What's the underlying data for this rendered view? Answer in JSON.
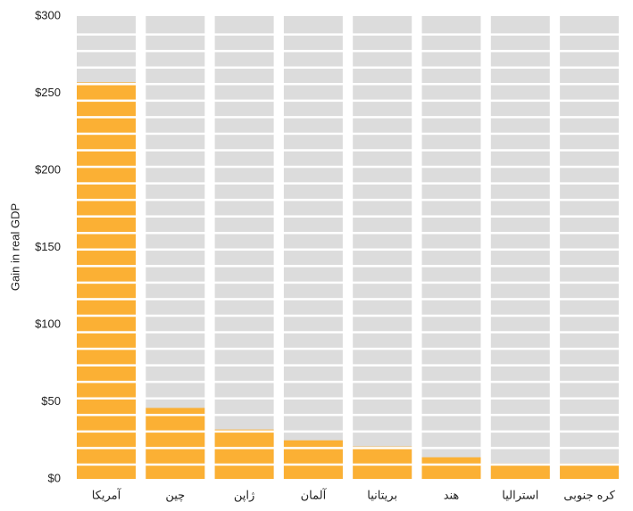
{
  "chart_data": {
    "type": "bar",
    "y_label": "Gain in real GDP",
    "categories": [
      "آمریکا",
      "چین",
      "ژاپن",
      "آلمان",
      "بریتانیا",
      "هند",
      "استرالیا",
      "کره جنوبی"
    ],
    "values": [
      257,
      46,
      32,
      25,
      21,
      14,
      10,
      10
    ],
    "color": "#fbb034",
    "ylim": [
      0,
      300
    ],
    "yticks": [
      {
        "value": 0,
        "label": "$0"
      },
      {
        "value": 50,
        "label": "$50"
      },
      {
        "value": 100,
        "label": "$100"
      },
      {
        "value": 150,
        "label": "$150"
      },
      {
        "value": 200,
        "label": "$200"
      },
      {
        "value": 250,
        "label": "$250"
      },
      {
        "value": 300,
        "label": "$300"
      }
    ]
  }
}
